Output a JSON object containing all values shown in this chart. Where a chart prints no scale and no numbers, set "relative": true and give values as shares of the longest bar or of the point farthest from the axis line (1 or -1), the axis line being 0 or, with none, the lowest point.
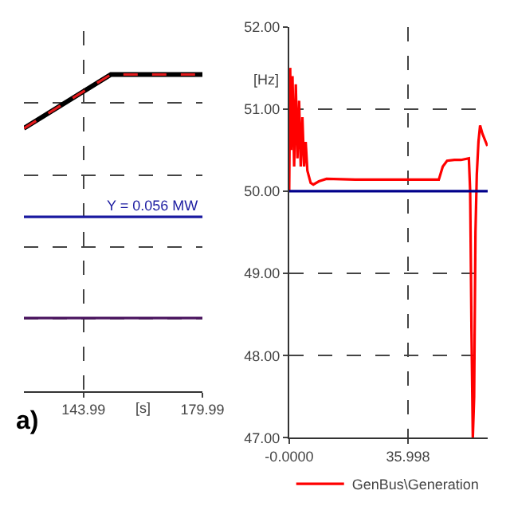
{
  "chart_data": [
    {
      "type": "line",
      "relative": true,
      "xlabel": "[s]",
      "xlim": [
        126,
        179.99
      ],
      "xticks": [
        143.99,
        179.99
      ],
      "grid": true,
      "legend": false,
      "marker": "none",
      "series": [
        {
          "color": "#000000",
          "line_style": "solid",
          "x": [
            126,
            152.3,
            179.99
          ],
          "values": [
            0.83,
            1,
            1
          ]
        },
        {
          "color": "#e31a1c",
          "line_style": "dashed",
          "x": [
            126,
            152.3,
            179.99
          ],
          "values": [
            0.83,
            1,
            1
          ]
        },
        {
          "color": "#4b1560",
          "line_style": "solid",
          "x": [
            126,
            179.99
          ],
          "values": [
            0.23,
            0.23
          ]
        }
      ],
      "ref_lines": [
        {
          "axis": "y",
          "value": 0.55,
          "label": null,
          "color": "#1a1aa0"
        }
      ],
      "annotations": [
        "Y = 0.056 MW",
        "a)"
      ]
    },
    {
      "type": "line",
      "ylabel": "[Hz]",
      "xlim": [
        -0.0,
        60.1
      ],
      "xticks": [
        {
          "value": 0,
          "label": "-0.0000"
        },
        35.998
      ],
      "ylim": [
        47,
        52
      ],
      "yticks": [
        {
          "value": 47,
          "label": "47.00"
        },
        {
          "value": 48,
          "label": "48.00"
        },
        {
          "value": 49,
          "label": "49.00"
        },
        {
          "value": 50,
          "label": "50.00"
        },
        {
          "value": 51,
          "label": "51.00"
        },
        {
          "value": 52,
          "label": "52.00"
        }
      ],
      "grid": true,
      "legend": "bottom",
      "marker": "none",
      "series": [
        {
          "name": "GenBus\\Generation",
          "color": "#ff0000",
          "line_style": "solid",
          "x": [
            0,
            0.3,
            0.6,
            1,
            1.5,
            2,
            2.5,
            3,
            3.5,
            4,
            4.5,
            5,
            5.5,
            6.5,
            7.3,
            9,
            11.3,
            20,
            30,
            40,
            45.3,
            46.5,
            47.8,
            50,
            52,
            54.4,
            54.8,
            55.2,
            55.6,
            56.0,
            56.4,
            56.8,
            57.3,
            57.8,
            58.5,
            59.5,
            60
          ],
          "values": [
            50.0,
            51.5,
            50.5,
            51.4,
            50.3,
            51.3,
            50.4,
            51.1,
            50.3,
            50.9,
            50.3,
            50.6,
            50.25,
            50.1,
            50.08,
            50.12,
            50.15,
            50.14,
            50.14,
            50.14,
            50.14,
            50.3,
            50.37,
            50.38,
            50.38,
            50.4,
            50.0,
            48.3,
            47.0,
            47.5,
            49.5,
            50.2,
            50.6,
            50.8,
            50.7,
            50.6,
            50.55
          ]
        }
      ],
      "ref_lines": [
        {
          "axis": "y",
          "value": 50,
          "label": null,
          "color": "#00008b"
        }
      ]
    }
  ]
}
